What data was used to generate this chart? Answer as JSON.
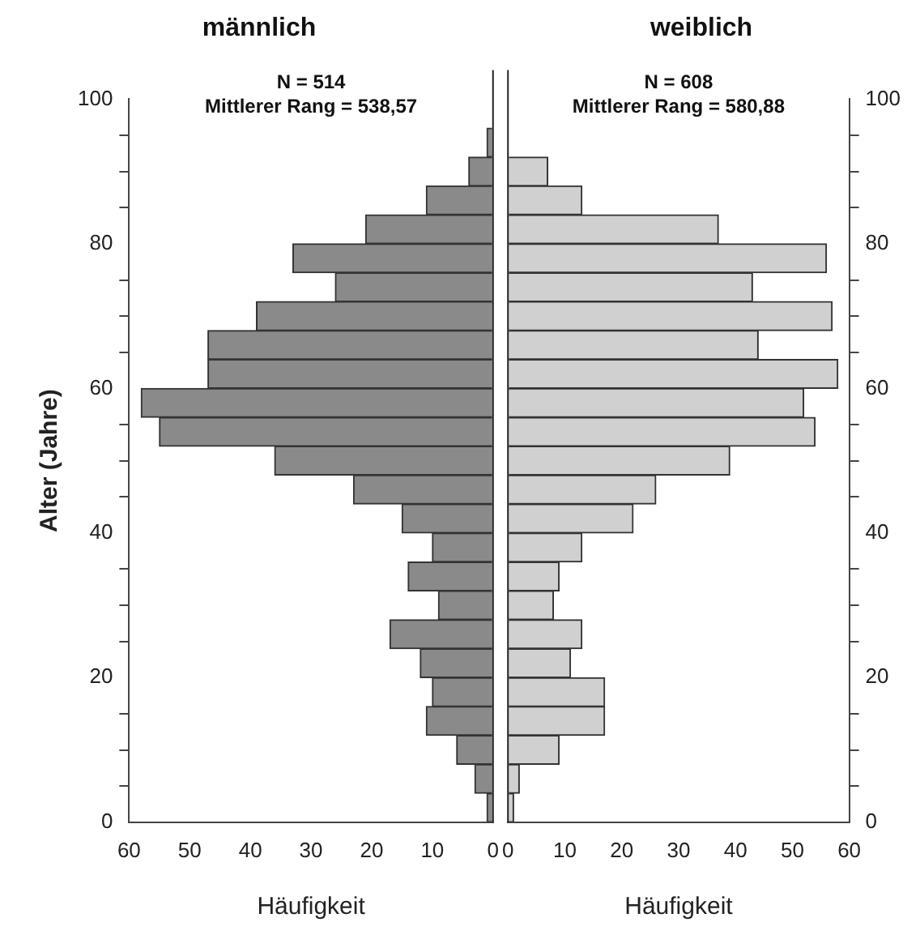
{
  "chart_data": [
    {
      "type": "histogram",
      "orientation": "horizontal",
      "title": "männlich",
      "xlabel": "Häufigkeit",
      "ylabel": "Alter (Jahre)",
      "annotations": [
        "N = 514",
        "Mittlerer Rang = 538,57"
      ],
      "bins": [
        0,
        4,
        8,
        12,
        16,
        20,
        24,
        28,
        32,
        36,
        40,
        44,
        48,
        52,
        56,
        60,
        64,
        68,
        72,
        76,
        80,
        84,
        88,
        92,
        96
      ],
      "values": [
        1,
        3,
        6,
        11,
        10,
        12,
        17,
        9,
        14,
        10,
        15,
        23,
        36,
        55,
        58,
        47,
        47,
        39,
        26,
        33,
        21,
        11,
        4,
        1
      ],
      "color": "#8a8a8a",
      "xlim": [
        60,
        0
      ],
      "xticks": [
        60,
        50,
        40,
        30,
        20,
        10,
        0
      ],
      "ylim": [
        0,
        100
      ],
      "yticks": [
        0,
        {
          "value": 5,
          "label": null
        },
        {
          "value": 10,
          "label": null
        },
        {
          "value": 15,
          "label": null
        },
        20,
        {
          "value": 25,
          "label": null
        },
        {
          "value": 30,
          "label": null
        },
        {
          "value": 35,
          "label": null
        },
        40,
        {
          "value": 45,
          "label": null
        },
        {
          "value": 50,
          "label": null
        },
        {
          "value": 55,
          "label": null
        },
        60,
        {
          "value": 65,
          "label": null
        },
        {
          "value": 70,
          "label": null
        },
        {
          "value": 75,
          "label": null
        },
        80,
        {
          "value": 85,
          "label": null
        },
        {
          "value": 90,
          "label": null
        },
        {
          "value": 95,
          "label": null
        },
        100
      ],
      "grid": false
    },
    {
      "type": "histogram",
      "orientation": "horizontal",
      "title": "weiblich",
      "xlabel": "Häufigkeit",
      "annotations": [
        "N = 608",
        "Mittlerer Rang = 580,88"
      ],
      "bins": [
        0,
        4,
        8,
        12,
        16,
        20,
        24,
        28,
        32,
        36,
        40,
        44,
        48,
        52,
        56,
        60,
        64,
        68,
        72,
        76,
        80,
        84,
        88,
        92,
        96
      ],
      "values": [
        1,
        2,
        9,
        17,
        17,
        11,
        13,
        8,
        9,
        13,
        22,
        26,
        39,
        54,
        52,
        58,
        44,
        57,
        43,
        56,
        37,
        13,
        7,
        0
      ],
      "color": "#d0d0d0",
      "xlim": [
        0,
        60
      ],
      "xticks": [
        0,
        10,
        20,
        30,
        40,
        50,
        60
      ],
      "ylim": [
        0,
        100
      ],
      "yticks": [
        0,
        {
          "value": 5,
          "label": null
        },
        {
          "value": 10,
          "label": null
        },
        {
          "value": 15,
          "label": null
        },
        20,
        {
          "value": 25,
          "label": null
        },
        {
          "value": 30,
          "label": null
        },
        {
          "value": 35,
          "label": null
        },
        40,
        {
          "value": 45,
          "label": null
        },
        {
          "value": 50,
          "label": null
        },
        {
          "value": 55,
          "label": null
        },
        60,
        {
          "value": 65,
          "label": null
        },
        {
          "value": 70,
          "label": null
        },
        {
          "value": 75,
          "label": null
        },
        80,
        {
          "value": 85,
          "label": null
        },
        {
          "value": 90,
          "label": null
        },
        {
          "value": 95,
          "label": null
        },
        100
      ],
      "grid": false
    }
  ]
}
